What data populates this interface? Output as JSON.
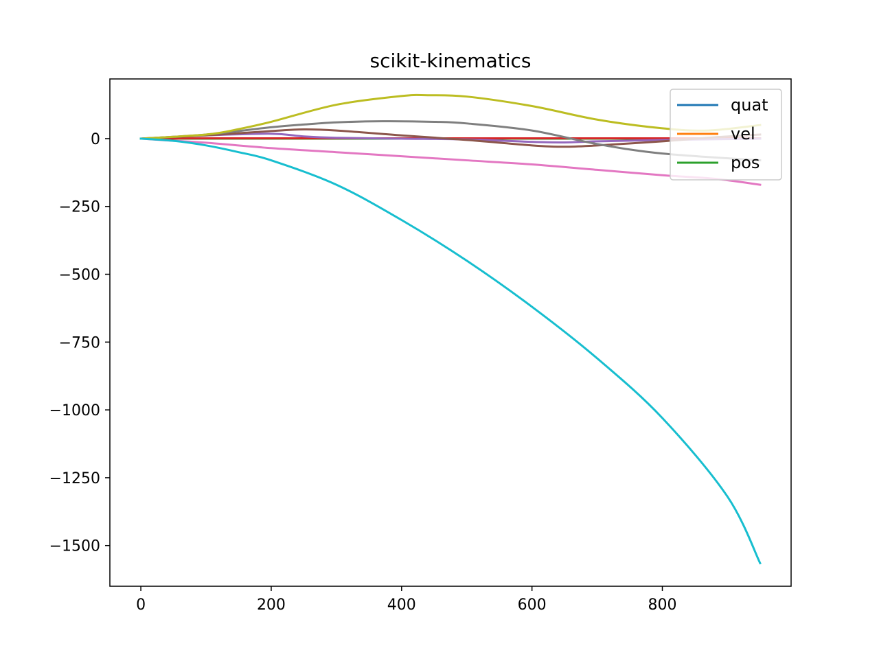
{
  "chart_data": {
    "type": "line",
    "title": "scikit-kinematics",
    "xlabel": "",
    "ylabel": "",
    "xlim": [
      -47.5,
      997.5
    ],
    "ylim": [
      -1650,
      220
    ],
    "xticks": [
      0,
      200,
      400,
      600,
      800
    ],
    "xtick_labels": [
      "0",
      "200",
      "400",
      "600",
      "800"
    ],
    "yticks": [
      0,
      -250,
      -500,
      -750,
      -1000,
      -1250,
      -1500
    ],
    "ytick_labels": [
      "0",
      "−250",
      "−500",
      "−750",
      "−1000",
      "−1250",
      "−1500"
    ],
    "grid": false,
    "legend_position": "top-right",
    "legend": [
      {
        "label": "quat",
        "color": "#1f77b4"
      },
      {
        "label": "vel",
        "color": "#ff7f0e"
      },
      {
        "label": "pos",
        "color": "#2ca02c"
      }
    ],
    "series": [
      {
        "color": "#1f77b4",
        "x": [
          0,
          100,
          200,
          300,
          400,
          500,
          600,
          700,
          800,
          950
        ],
        "y": [
          0,
          0,
          0,
          0,
          0,
          0,
          0,
          0,
          0,
          0
        ]
      },
      {
        "color": "#ff7f0e",
        "x": [
          0,
          100,
          200,
          300,
          400,
          500,
          600,
          700,
          800,
          950
        ],
        "y": [
          0,
          0,
          0,
          0,
          0,
          0,
          0,
          0,
          0,
          0
        ]
      },
      {
        "color": "#2ca02c",
        "x": [
          0,
          100,
          200,
          300,
          400,
          500,
          600,
          700,
          800,
          950
        ],
        "y": [
          0,
          0,
          0,
          0,
          0,
          0,
          0,
          0,
          0,
          0
        ]
      },
      {
        "color": "#d62728",
        "x": [
          0,
          100,
          200,
          300,
          400,
          500,
          600,
          700,
          800,
          950
        ],
        "y": [
          0,
          1,
          1,
          1,
          1,
          1,
          1,
          1,
          1,
          1
        ]
      },
      {
        "color": "#9467bd",
        "x": [
          0,
          100,
          200,
          250,
          300,
          400,
          500,
          600,
          650,
          700,
          800,
          950
        ],
        "y": [
          0,
          12,
          18,
          8,
          3,
          0,
          -3,
          -12,
          -14,
          -10,
          -5,
          0
        ]
      },
      {
        "color": "#8c564b",
        "x": [
          0,
          100,
          200,
          250,
          300,
          400,
          500,
          600,
          650,
          700,
          800,
          880,
          950
        ],
        "y": [
          0,
          12,
          28,
          34,
          30,
          12,
          -5,
          -25,
          -30,
          -25,
          -10,
          5,
          15
        ]
      },
      {
        "color": "#e377c2",
        "x": [
          0,
          50,
          100,
          200,
          300,
          400,
          500,
          600,
          700,
          800,
          880,
          950
        ],
        "y": [
          0,
          -8,
          -15,
          -35,
          -50,
          -65,
          -80,
          -95,
          -115,
          -135,
          -148,
          -170
        ]
      },
      {
        "color": "#7f7f7f",
        "x": [
          0,
          100,
          200,
          250,
          300,
          370,
          450,
          500,
          600,
          700,
          800,
          950
        ],
        "y": [
          0,
          15,
          42,
          52,
          60,
          64,
          62,
          56,
          30,
          -20,
          -55,
          -80
        ]
      },
      {
        "color": "#bcbd22",
        "x": [
          0,
          100,
          150,
          200,
          300,
          400,
          440,
          500,
          600,
          700,
          800,
          870,
          950
        ],
        "y": [
          0,
          15,
          35,
          62,
          125,
          157,
          160,
          155,
          120,
          70,
          38,
          30,
          50
        ]
      },
      {
        "color": "#17becf",
        "x": [
          0,
          50,
          100,
          150,
          200,
          300,
          400,
          500,
          600,
          700,
          800,
          900,
          950
        ],
        "y": [
          0,
          -8,
          -25,
          -50,
          -80,
          -170,
          -300,
          -450,
          -620,
          -810,
          -1030,
          -1320,
          -1565
        ]
      }
    ]
  }
}
